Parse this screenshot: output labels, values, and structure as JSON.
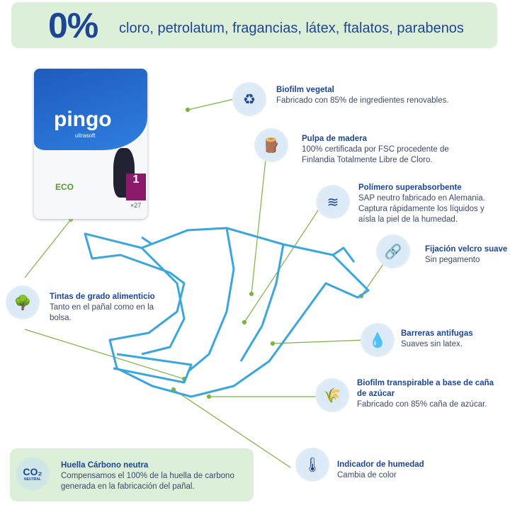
{
  "banner": {
    "big": "0%",
    "text": "cloro, petrolatum, fragancias, látex, ftalatos, parabenos"
  },
  "package": {
    "brand": "pingo",
    "sub": "ultrasoft",
    "size": "1",
    "count": "×27",
    "eco": "ECO"
  },
  "features": [
    {
      "title": "Biofilm vegetal",
      "desc": [
        "Fabricado con 85% de ingredientes renovables."
      ],
      "icon": "leaf-recycle-icon"
    },
    {
      "title": "Pulpa de madera",
      "desc": [
        "100% certificada por FSC procedente de",
        "Finlandia Totalmente Libre de Cloro."
      ],
      "icon": "wood-logs-icon"
    },
    {
      "title": "Polímero superabsorbente",
      "desc": [
        "SAP neutro fabricado en Alemania.",
        "Captura rápidamente los líquidos y",
        "aísla la piel de la humedad."
      ],
      "icon": "absorbent-layers-icon"
    },
    {
      "title": "Fijación velcro suave",
      "desc": [
        "Sin pegamento"
      ],
      "icon": "link-icon"
    },
    {
      "title": "Tintas de grado alimenticio",
      "desc": [
        "Tanto en el pañal como en la",
        "bolsa."
      ],
      "icon": "tree-icon"
    },
    {
      "title": "Barreras antifugas",
      "desc": [
        "Suaves sin latex."
      ],
      "icon": "water-drop-icon"
    },
    {
      "title": "Biofilm transpirable a base de caña",
      "desc": [
        "de azúcar",
        "Fabricado con 85% caña de azúcar."
      ],
      "icon": "sugarcane-icon"
    },
    {
      "title": "Indicador de humedad",
      "desc": [
        "Cambia de color"
      ],
      "icon": "thermometer-drop-icon"
    }
  ],
  "carbon": {
    "title": "Huella Cárbono neutra",
    "desc": [
      "Compensamos el 100% de la huella de carbono",
      "generada en la fabricación del pañal."
    ],
    "icon": "co2-neutral-icon",
    "badge": "CO₂",
    "badge_sub": "NEUTRAL"
  },
  "colors": {
    "navy": "#1d4596",
    "green_bg": "#dcefd9",
    "line": "#7cb342",
    "diaper": "#3aa6dc"
  }
}
